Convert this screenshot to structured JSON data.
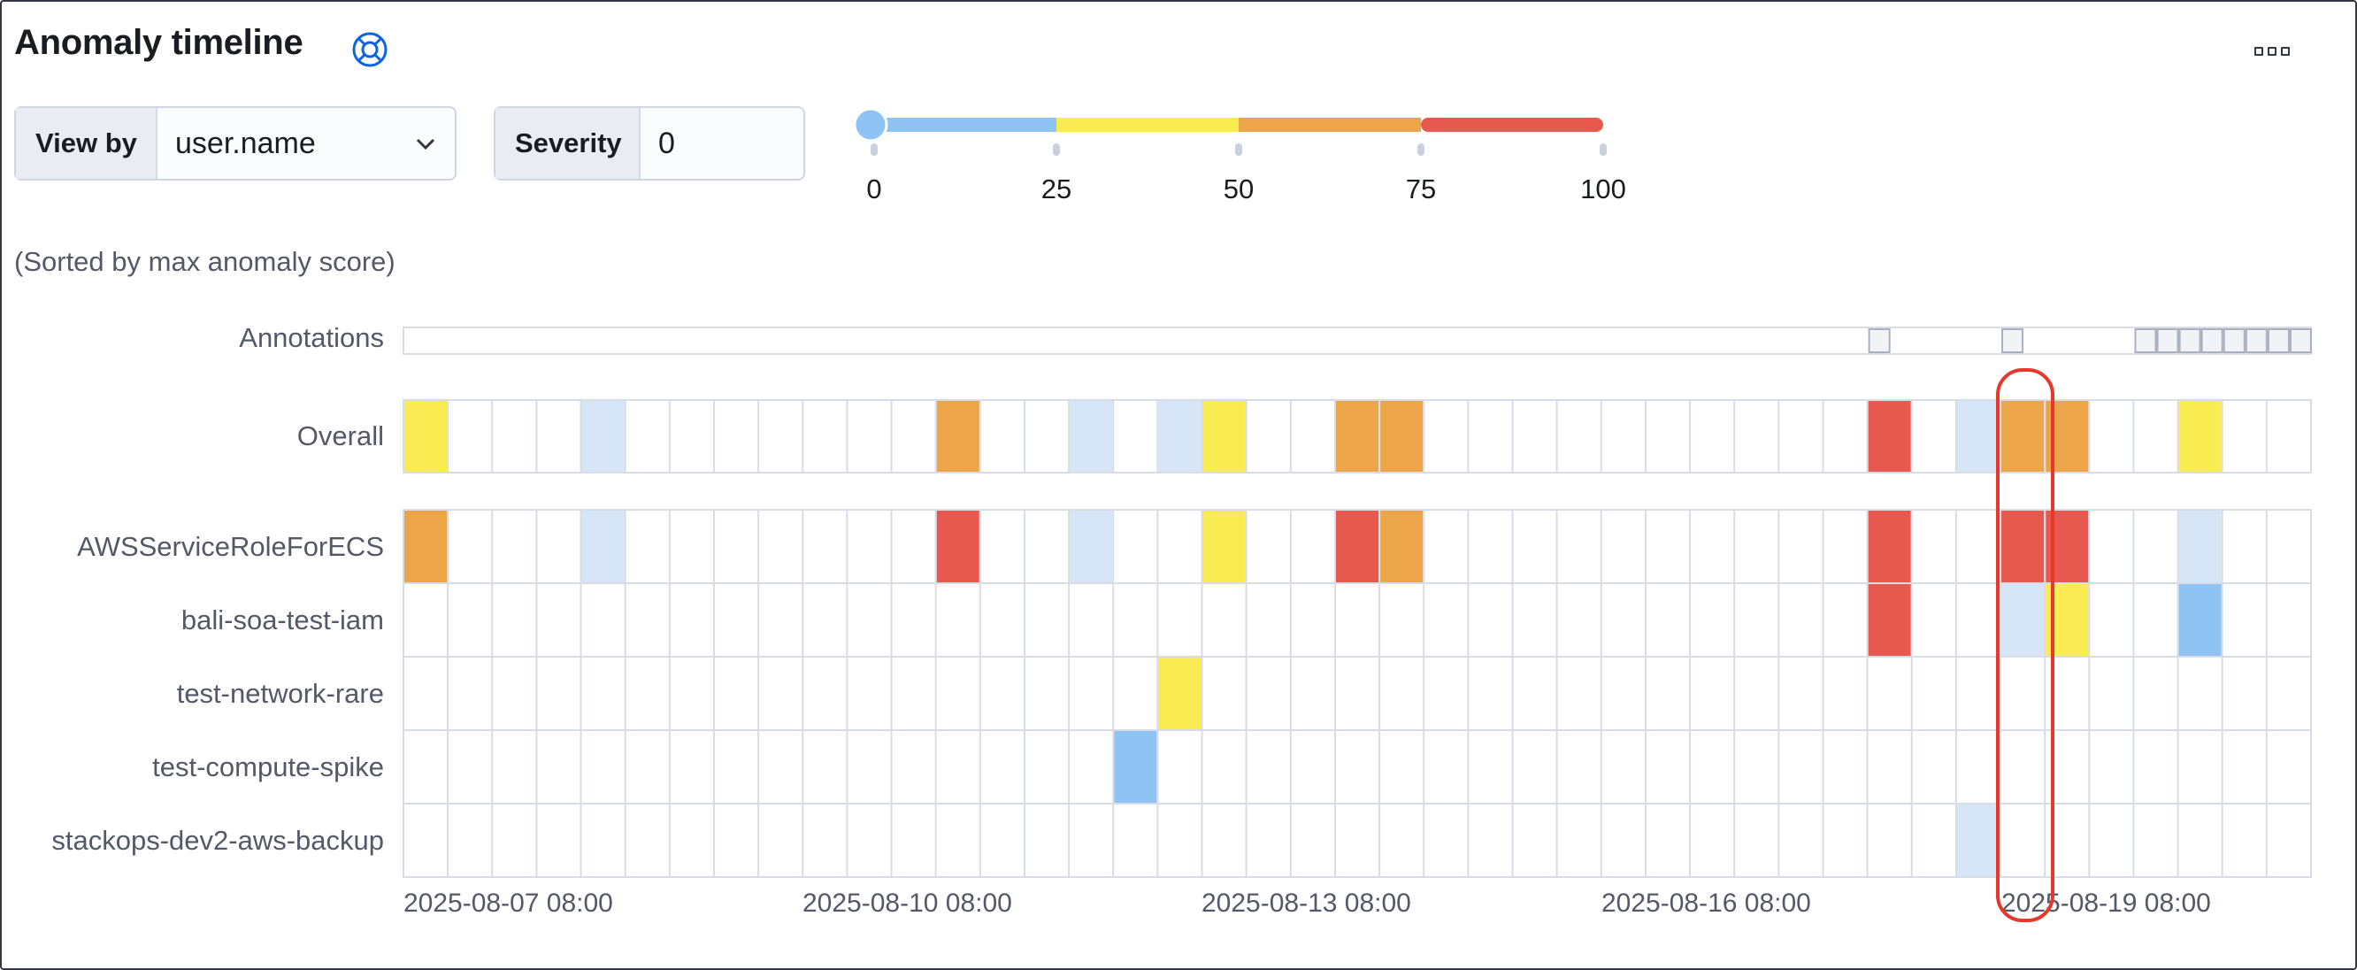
{
  "header": {
    "title": "Anomaly timeline",
    "help_icon": "lifebuoy-icon",
    "menu_icon": "more-icon"
  },
  "controls": {
    "view_by": {
      "label": "View by",
      "value": "user.name"
    },
    "severity": {
      "label": "Severity",
      "value": "0"
    }
  },
  "severity_scale": {
    "ticks": [
      "0",
      "25",
      "50",
      "75",
      "100"
    ],
    "values": [
      0,
      25,
      50,
      75,
      100
    ],
    "thumb_value": 0,
    "colors": [
      "#8fc3f3",
      "#f9eb52",
      "#eda54a",
      "#e7584f"
    ]
  },
  "sort_note": "(Sorted by max anomaly score)",
  "timeline": {
    "annotations_label": "Annotations",
    "overall_label": "Overall",
    "x_labels": [
      "2025-08-07 08:00",
      "2025-08-10 08:00",
      "2025-08-13 08:00",
      "2025-08-16 08:00",
      "2025-08-19 08:00"
    ],
    "buckets": 43,
    "annotation_buckets": [
      33,
      36,
      39,
      39.5,
      40,
      40.5,
      41,
      41.5,
      42,
      42.5
    ],
    "severity_colors": {
      "low": "#d6e6f6",
      "warning": "#8fc3f3",
      "minor": "#f9eb52",
      "major": "#eda54a",
      "critical": "#e7584f"
    },
    "overall": [
      {
        "i": 0,
        "s": "minor"
      },
      {
        "i": 4,
        "s": "low"
      },
      {
        "i": 12,
        "s": "major"
      },
      {
        "i": 15,
        "s": "low"
      },
      {
        "i": 17,
        "s": "low"
      },
      {
        "i": 18,
        "s": "minor"
      },
      {
        "i": 21,
        "s": "major"
      },
      {
        "i": 22,
        "s": "major"
      },
      {
        "i": 33,
        "s": "critical"
      },
      {
        "i": 35,
        "s": "low"
      },
      {
        "i": 36,
        "s": "major"
      },
      {
        "i": 37,
        "s": "major"
      },
      {
        "i": 40,
        "s": "minor"
      }
    ],
    "rows": [
      {
        "label": "AWSServiceRoleForECS",
        "cells": [
          {
            "i": 0,
            "s": "major"
          },
          {
            "i": 4,
            "s": "low"
          },
          {
            "i": 12,
            "s": "critical"
          },
          {
            "i": 15,
            "s": "low"
          },
          {
            "i": 18,
            "s": "minor"
          },
          {
            "i": 21,
            "s": "critical"
          },
          {
            "i": 22,
            "s": "major"
          },
          {
            "i": 33,
            "s": "critical"
          },
          {
            "i": 36,
            "s": "critical"
          },
          {
            "i": 37,
            "s": "critical"
          },
          {
            "i": 40,
            "s": "low"
          }
        ]
      },
      {
        "label": "bali-soa-test-iam",
        "cells": [
          {
            "i": 33,
            "s": "critical"
          },
          {
            "i": 36,
            "s": "low"
          },
          {
            "i": 37,
            "s": "minor"
          },
          {
            "i": 40,
            "s": "warning"
          }
        ]
      },
      {
        "label": "test-network-rare",
        "cells": [
          {
            "i": 17,
            "s": "minor"
          }
        ]
      },
      {
        "label": "test-compute-spike",
        "cells": [
          {
            "i": 16,
            "s": "warning"
          }
        ]
      },
      {
        "label": "stackops-dev2-aws-backup",
        "cells": [
          {
            "i": 35,
            "s": "low"
          }
        ]
      }
    ]
  }
}
